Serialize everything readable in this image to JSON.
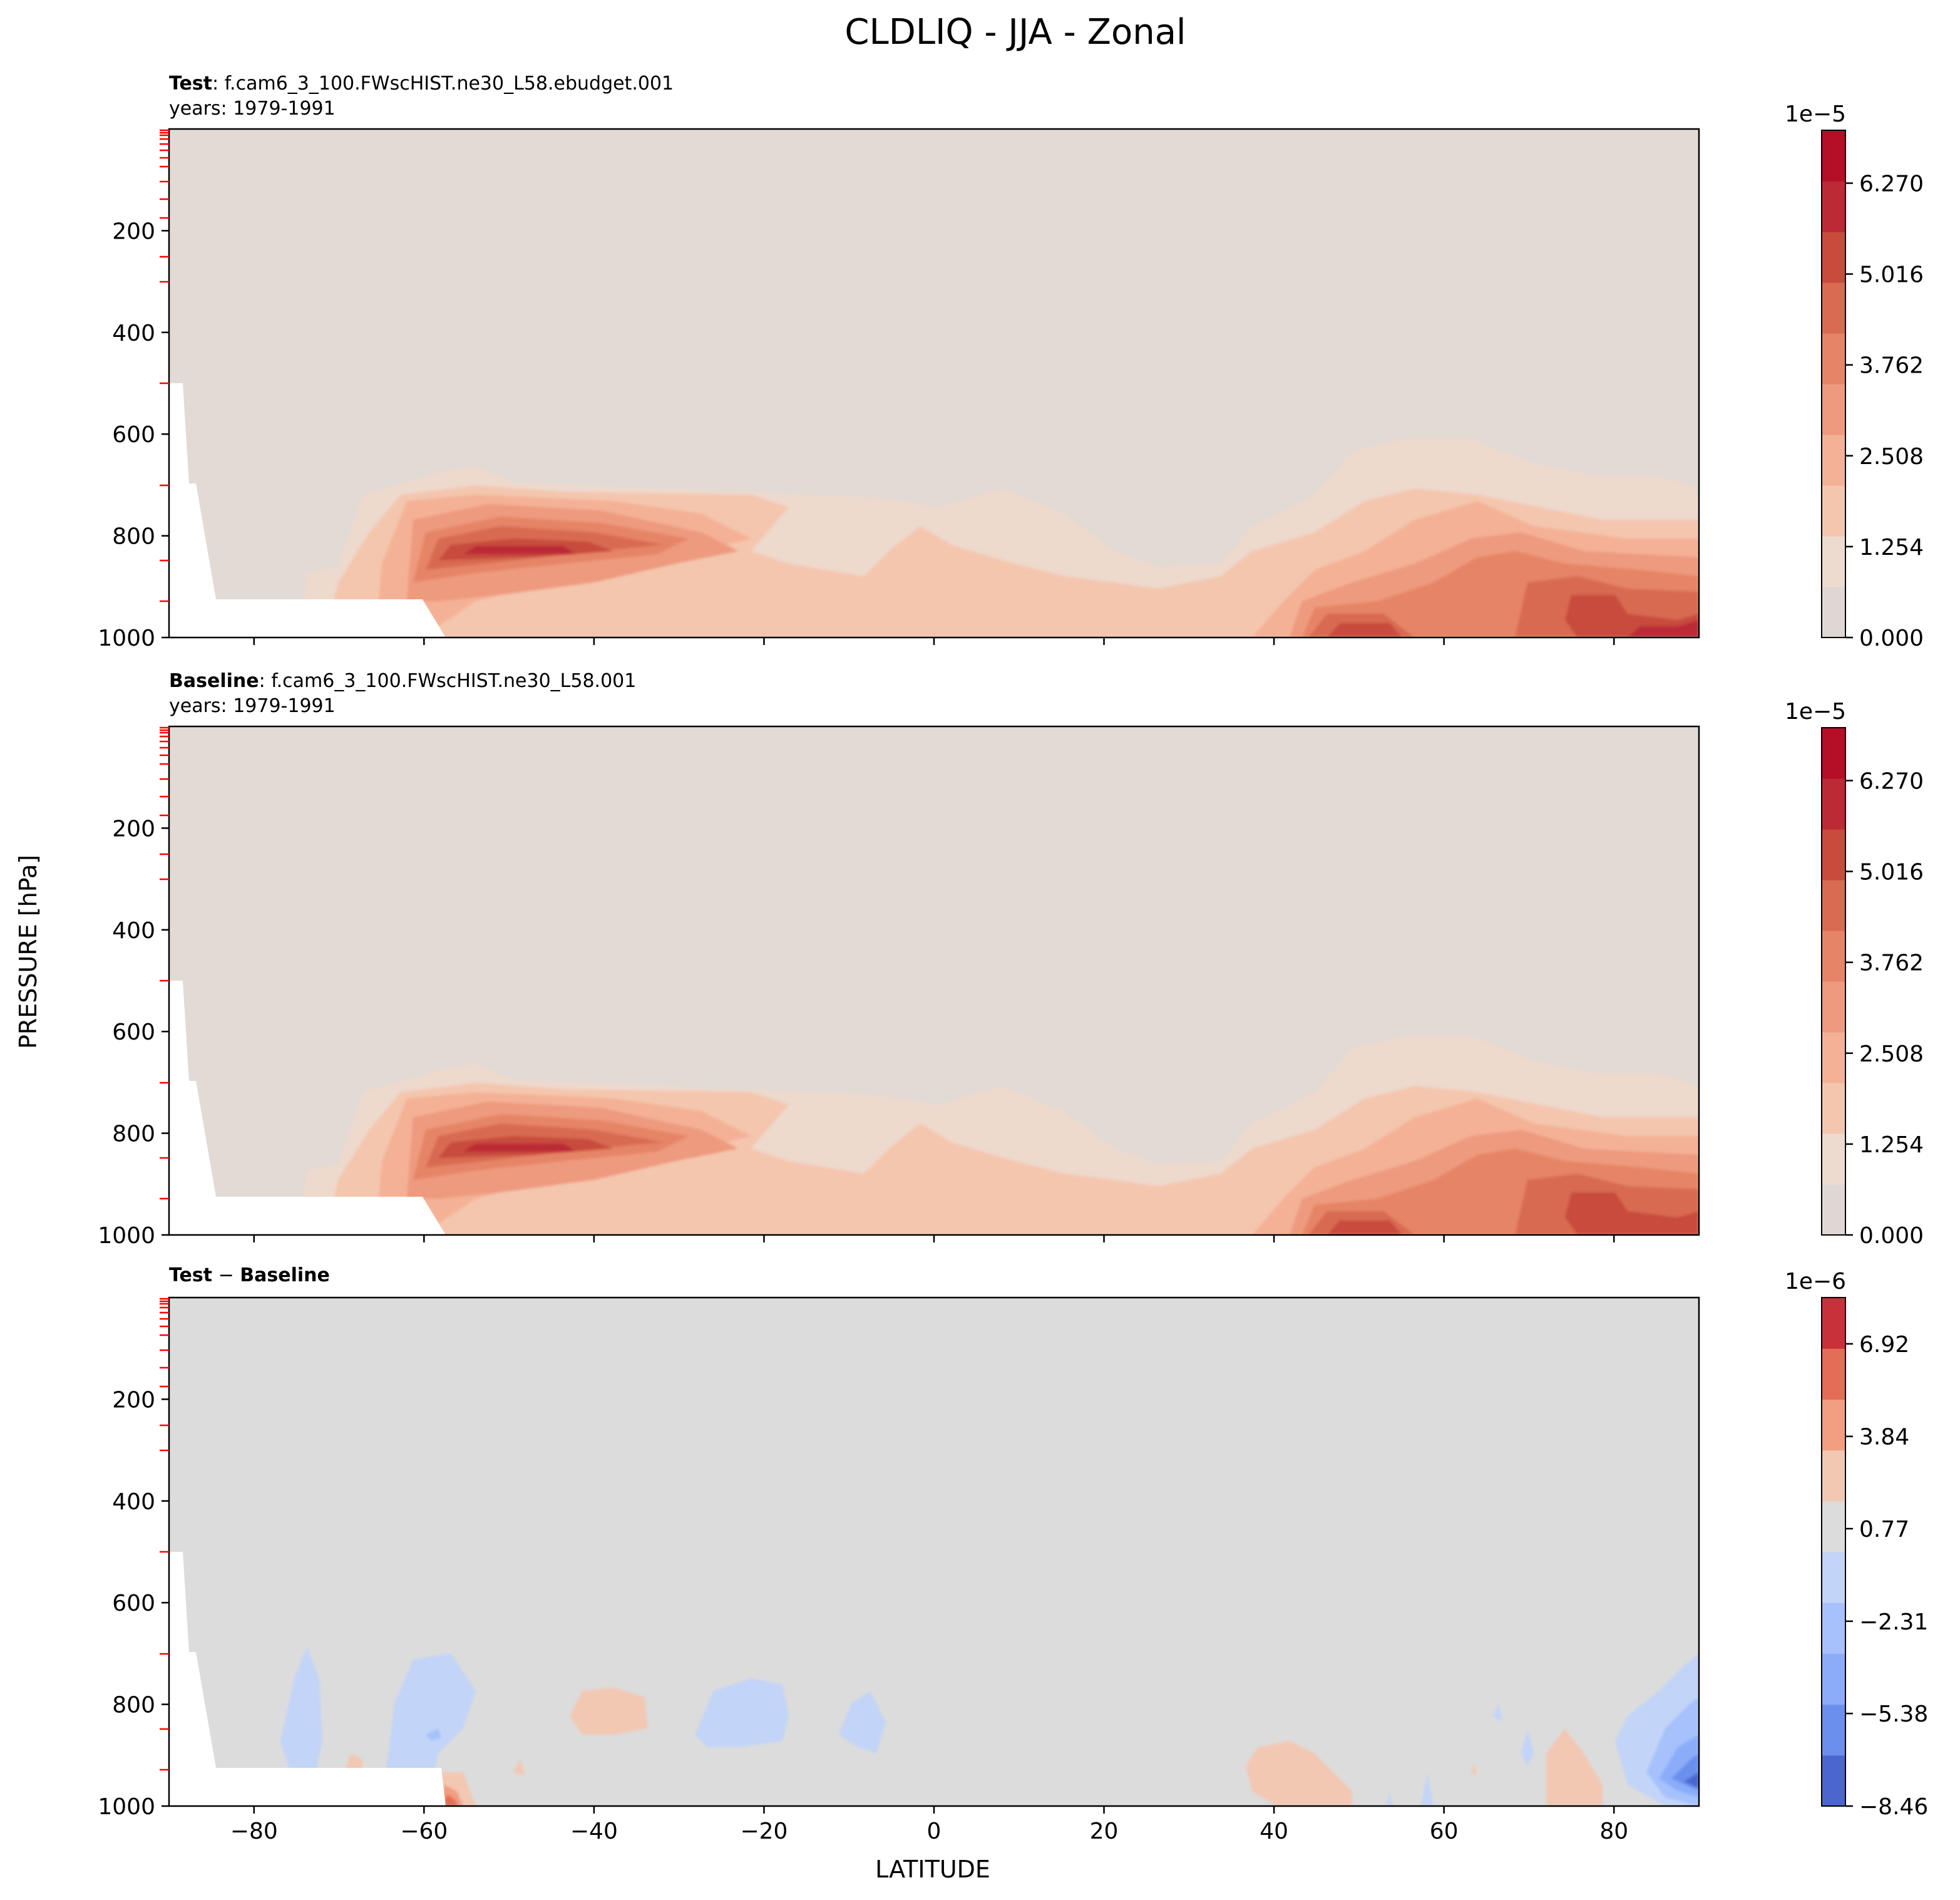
{
  "figure": {
    "title": "CLDLIQ - JJA - Zonal",
    "ylabel": "PRESSURE [hPa]",
    "xlabel": "LATITUDE"
  },
  "colors": {
    "lowRed": "#e2dad5",
    "gray": "#dcdcdc",
    "white": "#ffffff",
    "bar1": [
      "#ded7d3",
      "#eedbd0",
      "#f4c6ae",
      "#f4b196",
      "#ee9a7e",
      "#e68466",
      "#d86b51",
      "#c84b3c",
      "#bb2a35",
      "#b40f26"
    ],
    "bar3": [
      "#4a66cf",
      "#6b8fec",
      "#8badf9",
      "#a6c1fb",
      "#c2d4f7",
      "#dcdcdc",
      "#f2c8b3",
      "#f29e80",
      "#e36e55",
      "#c8313a"
    ]
  },
  "chart_data": [
    {
      "type": "contourf",
      "panel": "test",
      "label_bold": "Test",
      "label_rest": ": f.cam6_3_100.FWscHIST.ne30_L58.ebudget.001",
      "years": "years: 1979-1991",
      "xlim": [
        -90,
        90
      ],
      "ylim": [
        1000,
        0
      ],
      "xticks": [
        -80,
        -60,
        -40,
        -20,
        0,
        20,
        40,
        60,
        80
      ],
      "xtick_labels": [
        "−80",
        "−60",
        "−40",
        "−20",
        "0",
        "20",
        "40",
        "60",
        "80"
      ],
      "yticks": [
        200,
        400,
        600,
        800,
        1000
      ],
      "ytick_labels": [
        "200",
        "400",
        "600",
        "800",
        "1000"
      ],
      "colorbar": {
        "exponent": "1e−5",
        "min": 0,
        "max": 7.0,
        "ticks": [
          0,
          1.254,
          2.508,
          3.762,
          5.016,
          6.27
        ],
        "labels": [
          "0.000",
          "1.254",
          "2.508",
          "3.762",
          "5.016",
          "6.270"
        ]
      },
      "features": [
        {
          "lat": -48,
          "p": 850,
          "value": 6.5
        },
        {
          "lat": 47,
          "p": 990,
          "value": 5.2
        },
        {
          "lat": 85,
          "p": 970,
          "value": 6.8
        },
        {
          "lat": 65,
          "p": 900,
          "value": 4.2
        }
      ]
    },
    {
      "type": "contourf",
      "panel": "baseline",
      "label_bold": "Baseline",
      "label_rest": ": f.cam6_3_100.FWscHIST.ne30_L58.001",
      "years": "years: 1979-1991",
      "xlim": [
        -90,
        90
      ],
      "ylim": [
        1000,
        0
      ],
      "xticks": [
        -80,
        -60,
        -40,
        -20,
        0,
        20,
        40,
        60,
        80
      ],
      "yticks": [
        200,
        400,
        600,
        800,
        1000
      ],
      "ytick_labels": [
        "200",
        "400",
        "600",
        "800",
        "1000"
      ],
      "colorbar": {
        "exponent": "1e−5",
        "min": 0,
        "max": 7.0,
        "ticks": [
          0,
          1.254,
          2.508,
          3.762,
          5.016,
          6.27
        ],
        "labels": [
          "0.000",
          "1.254",
          "2.508",
          "3.762",
          "5.016",
          "6.270"
        ]
      },
      "features": [
        {
          "lat": -48,
          "p": 850,
          "value": 6.7
        },
        {
          "lat": 47,
          "p": 990,
          "value": 5.2
        },
        {
          "lat": 85,
          "p": 970,
          "value": 6.5
        },
        {
          "lat": 65,
          "p": 900,
          "value": 4.2
        }
      ]
    },
    {
      "type": "contourf",
      "panel": "difference",
      "label_a": "Test",
      "label_sep": " − ",
      "label_b": "Baseline",
      "xlim": [
        -90,
        90
      ],
      "ylim": [
        1000,
        0
      ],
      "xticks": [
        -80,
        -60,
        -40,
        -20,
        0,
        20,
        40,
        60,
        80
      ],
      "xtick_labels": [
        "−80",
        "−60",
        "−40",
        "−20",
        "0",
        "20",
        "40",
        "60",
        "80"
      ],
      "yticks": [
        200,
        400,
        600,
        800,
        1000
      ],
      "ytick_labels": [
        "200",
        "400",
        "600",
        "800",
        "1000"
      ],
      "colorbar": {
        "exponent": "1e−6",
        "min": -8.46,
        "max": 8.46,
        "ticks": [
          -8.46,
          -5.38,
          -2.31,
          0.77,
          3.84,
          6.92
        ],
        "labels": [
          "−8.46",
          "−5.38",
          "−2.31",
          "0.77",
          "3.84",
          "6.92"
        ]
      },
      "features": [
        {
          "lat": 88,
          "p": 920,
          "value": -7.5
        },
        {
          "lat": -57,
          "p": 1000,
          "value": 6.0
        },
        {
          "lat": -40,
          "p": 820,
          "value": 1.5
        },
        {
          "lat": -22,
          "p": 840,
          "value": -1.5
        }
      ]
    }
  ]
}
